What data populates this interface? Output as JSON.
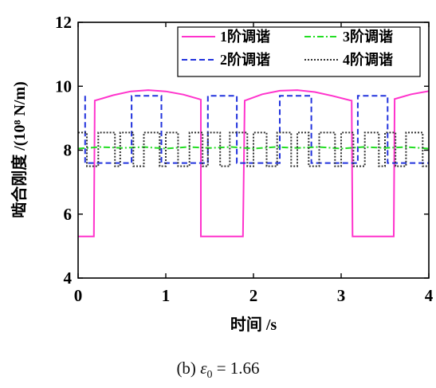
{
  "chart_data": {
    "type": "line",
    "xlabel": "时间 /s",
    "ylabel": "啮合刚度 /(10⁸ N/m)",
    "xlim": [
      0,
      4
    ],
    "ylim": [
      4,
      12
    ],
    "xticks": [
      "0",
      "1",
      "2",
      "3",
      "4"
    ],
    "yticks": [
      "4",
      "6",
      "8",
      "10",
      "12"
    ],
    "grid": false,
    "legend_position": "top-right",
    "series": [
      {
        "name": "1阶调谐",
        "color": "#ff33cc",
        "dash": "solid",
        "x": [
          0,
          0.18,
          0.19,
          0.4,
          0.6,
          0.8,
          1.0,
          1.2,
          1.38,
          1.4,
          1.4,
          1.88,
          1.9,
          2.1,
          2.3,
          2.5,
          2.7,
          2.9,
          3.1,
          3.12,
          3.13,
          3.6,
          3.61,
          3.8,
          4.0
        ],
        "y": [
          5.3,
          5.3,
          9.55,
          9.72,
          9.84,
          9.88,
          9.84,
          9.74,
          9.6,
          9.58,
          5.3,
          5.3,
          9.55,
          9.75,
          9.86,
          9.88,
          9.82,
          9.7,
          9.56,
          9.55,
          5.3,
          5.3,
          9.6,
          9.75,
          9.85
        ]
      },
      {
        "name": "2阶调谐",
        "color": "#2233dd",
        "dash": "dashed",
        "x": [
          0.08,
          0.08,
          0.2,
          0.2,
          0.61,
          0.61,
          0.95,
          0.95,
          1.48,
          1.48,
          1.81,
          1.81,
          2.3,
          2.3,
          2.66,
          2.66,
          3.19,
          3.19,
          3.53,
          3.53,
          4.0
        ],
        "y": [
          9.7,
          7.6,
          7.6,
          7.6,
          7.6,
          9.7,
          9.7,
          7.6,
          7.6,
          9.7,
          9.7,
          7.6,
          7.6,
          9.7,
          9.7,
          7.6,
          7.6,
          9.7,
          9.7,
          7.6,
          7.6
        ]
      },
      {
        "name": "3阶调谐",
        "color": "#22dd22",
        "dash": "dashdot",
        "x": [
          0,
          0.25,
          0.5,
          0.75,
          1.0,
          1.25,
          1.5,
          1.75,
          2.0,
          2.25,
          2.5,
          2.75,
          3.0,
          3.25,
          3.5,
          3.75,
          4.0
        ],
        "y": [
          8.05,
          8.1,
          8.07,
          8.1,
          8.05,
          8.1,
          8.07,
          8.1,
          8.05,
          8.1,
          8.07,
          8.1,
          8.05,
          8.1,
          8.07,
          8.1,
          8.05
        ]
      },
      {
        "name": "4阶调谐",
        "color": "#333333",
        "dash": "dotted",
        "x": [
          0.0,
          0.1,
          0.1,
          0.23,
          0.23,
          0.42,
          0.42,
          0.48,
          0.48,
          0.63,
          0.63,
          0.75,
          0.75,
          0.93,
          0.93,
          1.0,
          1.0,
          1.14,
          1.14,
          1.27,
          1.27,
          1.42,
          1.42,
          1.48,
          1.48,
          1.62,
          1.62,
          1.73,
          1.73,
          1.93,
          1.93,
          2.0,
          2.0,
          2.15,
          2.15,
          2.27,
          2.27,
          2.43,
          2.43,
          2.5,
          2.5,
          2.63,
          2.63,
          2.75,
          2.75,
          2.93,
          2.93,
          3.0,
          3.0,
          3.14,
          3.14,
          3.27,
          3.27,
          3.43,
          3.43,
          3.5,
          3.5,
          3.62,
          3.62,
          3.74,
          3.74,
          3.93,
          3.93,
          4.0
        ],
        "y": [
          8.55,
          8.55,
          7.5,
          7.5,
          8.55,
          8.55,
          7.5,
          7.5,
          8.55,
          8.55,
          7.5,
          7.5,
          8.55,
          8.55,
          7.5,
          7.5,
          8.55,
          8.55,
          7.5,
          7.5,
          8.55,
          8.55,
          7.5,
          7.5,
          8.55,
          8.55,
          7.5,
          7.5,
          8.55,
          8.55,
          7.5,
          7.5,
          8.55,
          8.55,
          7.5,
          7.5,
          8.55,
          8.55,
          7.5,
          7.5,
          8.55,
          8.55,
          7.5,
          7.5,
          8.55,
          8.55,
          7.5,
          7.5,
          8.55,
          8.55,
          7.5,
          7.5,
          8.55,
          8.55,
          7.5,
          7.5,
          8.55,
          8.55,
          7.5,
          7.5,
          8.55,
          8.55,
          7.5,
          7.5
        ]
      }
    ]
  },
  "caption": {
    "prefix": "(b)",
    "symbol": "ε",
    "subscript": "0",
    "value": "= 1.66"
  }
}
